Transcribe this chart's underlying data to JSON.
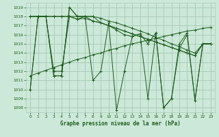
{
  "title": "Graphe pression niveau de la mer (hPa)",
  "bg_color": "#cce8d8",
  "grid_color": "#aaccbb",
  "line_color": "#1a5c1a",
  "xlim": [
    -0.5,
    23.5
  ],
  "ylim": [
    1007.5,
    1019.5
  ],
  "yticks": [
    1008,
    1009,
    1010,
    1011,
    1012,
    1013,
    1014,
    1015,
    1016,
    1017,
    1018,
    1019
  ],
  "xticks": [
    0,
    1,
    2,
    3,
    4,
    5,
    6,
    7,
    8,
    9,
    10,
    11,
    12,
    13,
    14,
    15,
    16,
    17,
    18,
    19,
    20,
    21,
    22,
    23
  ],
  "s1": [
    1018.0,
    1018.0,
    1018.0,
    1018.0,
    1018.0,
    1018.0,
    1017.7,
    1017.8,
    1017.5,
    1017.3,
    1017.0,
    1016.7,
    1016.4,
    1016.1,
    1015.8,
    1015.5,
    1015.2,
    1014.9,
    1014.6,
    1014.3,
    1014.0,
    1013.7,
    1015.0,
    1015.0
  ],
  "s2": [
    1018.0,
    1018.0,
    1018.0,
    1018.0,
    1018.0,
    1018.0,
    1018.0,
    1018.0,
    1018.0,
    1017.8,
    1017.5,
    1017.3,
    1017.0,
    1016.7,
    1016.4,
    1016.1,
    1015.7,
    1015.4,
    1015.0,
    1014.7,
    1014.3,
    1014.0,
    1015.0,
    1015.0
  ],
  "s3": [
    1018.0,
    1018.0,
    1018.0,
    1012.0,
    1012.0,
    1018.0,
    1017.7,
    1018.0,
    1017.5,
    1017.3,
    1017.0,
    1016.7,
    1016.4,
    1016.1,
    1015.8,
    1015.5,
    1015.2,
    1014.9,
    1014.6,
    1014.3,
    1014.0,
    1013.7,
    1015.0,
    1015.0
  ],
  "s4": [
    1010.0,
    1018.0,
    1018.0,
    1011.5,
    1011.5,
    1019.0,
    1018.0,
    1018.0,
    1018.0,
    1017.3,
    1017.0,
    1016.5,
    1016.0,
    1015.8,
    1016.1,
    1009.0,
    1016.2,
    1008.0,
    1009.0,
    1014.5,
    1016.0,
    1008.8,
    1015.0,
    1015.0
  ],
  "s5": [
    1010.0,
    1018.0,
    1018.0,
    1011.5,
    1011.5,
    1019.0,
    1018.0,
    1018.0,
    1011.0,
    1012.0,
    1017.3,
    1007.7,
    1012.0,
    1015.8,
    1016.1,
    1015.0,
    1016.2,
    1008.0,
    1009.0,
    1015.0,
    1016.2,
    1008.8,
    1015.0,
    1015.0
  ],
  "trend": [
    1011.5,
    1011.8,
    1012.1,
    1012.4,
    1012.7,
    1013.0,
    1013.3,
    1013.5,
    1013.8,
    1014.0,
    1014.3,
    1014.5,
    1014.8,
    1015.0,
    1015.2,
    1015.4,
    1015.6,
    1015.8,
    1016.0,
    1016.2,
    1016.4,
    1016.5,
    1016.7,
    1016.8
  ]
}
